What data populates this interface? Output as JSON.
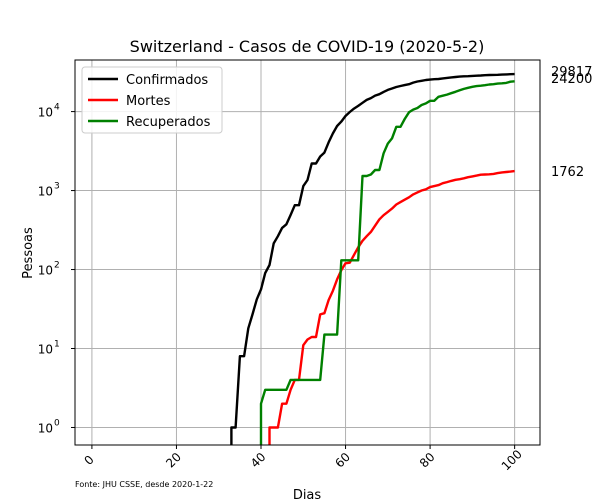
{
  "chart_data": {
    "type": "line",
    "title": "Switzerland - Casos de COVID-19 (2020-5-2)",
    "xlabel": "Dias",
    "ylabel": "Pessoas",
    "yscale": "log",
    "xlim": [
      -4,
      106
    ],
    "ylim": [
      0.6,
      45000
    ],
    "grid": true,
    "legend_position": "top-left",
    "source_note": "Fonte: JHU CSSE, desde 2020-1-22",
    "x_ticks": [
      {
        "value": 0,
        "label": "0"
      },
      {
        "value": 20,
        "label": "20"
      },
      {
        "value": 40,
        "label": "40"
      },
      {
        "value": 60,
        "label": "60"
      },
      {
        "value": 80,
        "label": "80"
      },
      {
        "value": 100,
        "label": "100"
      }
    ],
    "y_ticks": [
      {
        "value": 1,
        "base": "10",
        "exp": "0"
      },
      {
        "value": 10,
        "base": "10",
        "exp": "1"
      },
      {
        "value": 100,
        "base": "10",
        "exp": "2"
      },
      {
        "value": 1000,
        "base": "10",
        "exp": "3"
      },
      {
        "value": 10000,
        "base": "10",
        "exp": "4"
      }
    ],
    "series": [
      {
        "name": "Confirmados",
        "color": "#000000",
        "final_label": "29817",
        "points": [
          [
            33,
            0.6
          ],
          [
            33,
            1
          ],
          [
            34,
            1
          ],
          [
            35,
            8
          ],
          [
            36,
            8
          ],
          [
            37,
            18
          ],
          [
            38,
            27
          ],
          [
            39,
            42
          ],
          [
            40,
            56
          ],
          [
            41,
            90
          ],
          [
            42,
            114
          ],
          [
            43,
            214
          ],
          [
            44,
            264
          ],
          [
            45,
            337
          ],
          [
            46,
            374
          ],
          [
            47,
            491
          ],
          [
            48,
            652
          ],
          [
            49,
            652
          ],
          [
            50,
            1139
          ],
          [
            51,
            1359
          ],
          [
            52,
            2200
          ],
          [
            53,
            2200
          ],
          [
            54,
            2700
          ],
          [
            55,
            3028
          ],
          [
            56,
            4075
          ],
          [
            57,
            5294
          ],
          [
            58,
            6575
          ],
          [
            59,
            7474
          ],
          [
            60,
            8795
          ],
          [
            61,
            9877
          ],
          [
            62,
            10897
          ],
          [
            63,
            11811
          ],
          [
            64,
            12928
          ],
          [
            65,
            14076
          ],
          [
            66,
            14829
          ],
          [
            67,
            15922
          ],
          [
            68,
            16605
          ],
          [
            69,
            17768
          ],
          [
            70,
            18827
          ],
          [
            71,
            19606
          ],
          [
            72,
            20505
          ],
          [
            73,
            21100
          ],
          [
            74,
            21657
          ],
          [
            75,
            22253
          ],
          [
            76,
            23280
          ],
          [
            77,
            24051
          ],
          [
            78,
            24551
          ],
          [
            79,
            25107
          ],
          [
            80,
            25415
          ],
          [
            81,
            25688
          ],
          [
            82,
            25834
          ],
          [
            83,
            26336
          ],
          [
            84,
            26732
          ],
          [
            85,
            27078
          ],
          [
            86,
            27404
          ],
          [
            87,
            27740
          ],
          [
            88,
            27944
          ],
          [
            89,
            28063
          ],
          [
            90,
            28268
          ],
          [
            91,
            28496
          ],
          [
            92,
            28677
          ],
          [
            93,
            28894
          ],
          [
            94,
            29061
          ],
          [
            95,
            29164
          ],
          [
            96,
            29264
          ],
          [
            97,
            29407
          ],
          [
            98,
            29586
          ],
          [
            99,
            29705
          ],
          [
            100,
            29817
          ]
        ]
      },
      {
        "name": "Mortes",
        "color": "#ff0000",
        "final_label": "1762",
        "points": [
          [
            42,
            0.6
          ],
          [
            42,
            1
          ],
          [
            44,
            1
          ],
          [
            45,
            2
          ],
          [
            46,
            2
          ],
          [
            47,
            3
          ],
          [
            48,
            4
          ],
          [
            49,
            4
          ],
          [
            50,
            11
          ],
          [
            51,
            13
          ],
          [
            52,
            14
          ],
          [
            53,
            14
          ],
          [
            54,
            27
          ],
          [
            55,
            28
          ],
          [
            56,
            41
          ],
          [
            57,
            54
          ],
          [
            58,
            75
          ],
          [
            59,
            98
          ],
          [
            60,
            120
          ],
          [
            61,
            122
          ],
          [
            62,
            153
          ],
          [
            63,
            191
          ],
          [
            64,
            231
          ],
          [
            65,
            264
          ],
          [
            66,
            300
          ],
          [
            67,
            359
          ],
          [
            68,
            433
          ],
          [
            69,
            488
          ],
          [
            70,
            536
          ],
          [
            71,
            591
          ],
          [
            72,
            666
          ],
          [
            73,
            715
          ],
          [
            74,
            765
          ],
          [
            75,
            821
          ],
          [
            76,
            895
          ],
          [
            77,
            948
          ],
          [
            78,
            1002
          ],
          [
            79,
            1036
          ],
          [
            80,
            1106
          ],
          [
            81,
            1138
          ],
          [
            82,
            1174
          ],
          [
            83,
            1239
          ],
          [
            84,
            1281
          ],
          [
            85,
            1327
          ],
          [
            86,
            1368
          ],
          [
            87,
            1393
          ],
          [
            88,
            1429
          ],
          [
            89,
            1478
          ],
          [
            90,
            1509
          ],
          [
            91,
            1549
          ],
          [
            92,
            1589
          ],
          [
            93,
            1599
          ],
          [
            94,
            1608
          ],
          [
            95,
            1627
          ],
          [
            96,
            1665
          ],
          [
            97,
            1699
          ],
          [
            98,
            1716
          ],
          [
            99,
            1737
          ],
          [
            100,
            1762
          ]
        ]
      },
      {
        "name": "Recuperados",
        "color": "#008000",
        "final_label": "24200",
        "points": [
          [
            40,
            0.6
          ],
          [
            40,
            2
          ],
          [
            41,
            3
          ],
          [
            42,
            3
          ],
          [
            43,
            3
          ],
          [
            44,
            3
          ],
          [
            45,
            3
          ],
          [
            46,
            3
          ],
          [
            47,
            4
          ],
          [
            48,
            4
          ],
          [
            49,
            4
          ],
          [
            50,
            4
          ],
          [
            51,
            4
          ],
          [
            52,
            4
          ],
          [
            53,
            4
          ],
          [
            54,
            4
          ],
          [
            55,
            15
          ],
          [
            56,
            15
          ],
          [
            57,
            15
          ],
          [
            58,
            15
          ],
          [
            59,
            131
          ],
          [
            60,
            131
          ],
          [
            61,
            131
          ],
          [
            62,
            131
          ],
          [
            63,
            131
          ],
          [
            64,
            1530
          ],
          [
            65,
            1530
          ],
          [
            66,
            1595
          ],
          [
            67,
            1823
          ],
          [
            68,
            1823
          ],
          [
            69,
            2967
          ],
          [
            70,
            3930
          ],
          [
            71,
            4575
          ],
          [
            72,
            6415
          ],
          [
            73,
            6415
          ],
          [
            74,
            8056
          ],
          [
            75,
            9800
          ],
          [
            76,
            10600
          ],
          [
            77,
            11100
          ],
          [
            78,
            12100
          ],
          [
            79,
            12700
          ],
          [
            80,
            13700
          ],
          [
            81,
            13700
          ],
          [
            82,
            15400
          ],
          [
            83,
            15900
          ],
          [
            84,
            16400
          ],
          [
            85,
            17100
          ],
          [
            86,
            17800
          ],
          [
            87,
            18600
          ],
          [
            88,
            19400
          ],
          [
            89,
            20000
          ],
          [
            90,
            20600
          ],
          [
            91,
            21000
          ],
          [
            92,
            21300
          ],
          [
            93,
            21600
          ],
          [
            94,
            22000
          ],
          [
            95,
            22200
          ],
          [
            96,
            22600
          ],
          [
            97,
            22800
          ],
          [
            98,
            23100
          ],
          [
            99,
            23900
          ],
          [
            100,
            24200
          ]
        ]
      }
    ]
  }
}
